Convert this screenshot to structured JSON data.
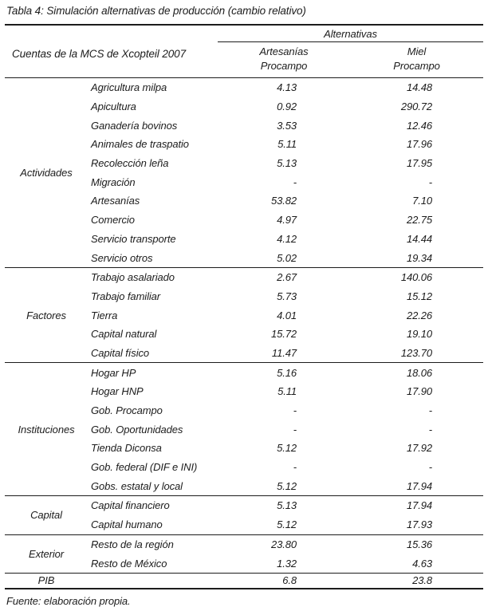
{
  "title": "Tabla 4: Simulación alternativas de producción (cambio relativo)",
  "footer": "Fuente: elaboración propia.",
  "colors": {
    "text": "#1c1c1c",
    "rule": "#1c1c1c",
    "background": "#ffffff"
  },
  "table": {
    "row_header": "Cuentas de la MCS de Xcopteil 2007",
    "col_group": "Alternativas",
    "columns": [
      {
        "line1": "Artesanías",
        "line2": "Procampo"
      },
      {
        "line1": "Miel",
        "line2": "Procampo"
      }
    ],
    "sections": [
      {
        "group": "Actividades",
        "rows": [
          {
            "label": "Agricultura milpa",
            "v1": "4.13",
            "v2": "14.48"
          },
          {
            "label": "Apicultura",
            "v1": "0.92",
            "v2": "290.72"
          },
          {
            "label": "Ganadería bovinos",
            "v1": "3.53",
            "v2": "12.46"
          },
          {
            "label": "Animales de traspatio",
            "v1": "5.11",
            "v2": "17.96"
          },
          {
            "label": "Recolección leña",
            "v1": "5.13",
            "v2": "17.95"
          },
          {
            "label": "Migración",
            "v1": "-",
            "v2": "-"
          },
          {
            "label": "Artesanías",
            "v1": "53.82",
            "v2": "7.10"
          },
          {
            "label": "Comercio",
            "v1": "4.97",
            "v2": "22.75"
          },
          {
            "label": "Servicio transporte",
            "v1": "4.12",
            "v2": "14.44"
          },
          {
            "label": "Servicio otros",
            "v1": "5.02",
            "v2": "19.34"
          }
        ]
      },
      {
        "group": "Factores",
        "rows": [
          {
            "label": "Trabajo asalariado",
            "v1": "2.67",
            "v2": "140.06"
          },
          {
            "label": "Trabajo familiar",
            "v1": "5.73",
            "v2": "15.12"
          },
          {
            "label": "Tierra",
            "v1": "4.01",
            "v2": "22.26"
          },
          {
            "label": "Capital natural",
            "v1": "15.72",
            "v2": "19.10"
          },
          {
            "label": "Capital físico",
            "v1": "11.47",
            "v2": "123.70"
          }
        ]
      },
      {
        "group": "Instituciones",
        "rows": [
          {
            "label": "Hogar HP",
            "v1": "5.16",
            "v2": "18.06"
          },
          {
            "label": "Hogar HNP",
            "v1": "5.11",
            "v2": "17.90"
          },
          {
            "label": "Gob. Procampo",
            "v1": "-",
            "v2": "-"
          },
          {
            "label": "Gob. Oportunidades",
            "v1": "-",
            "v2": "-"
          },
          {
            "label": "Tienda Diconsa",
            "v1": "5.12",
            "v2": "17.92"
          },
          {
            "label": "Gob. federal (DIF e INI)",
            "v1": "-",
            "v2": "-"
          },
          {
            "label": "Gobs. estatal y local",
            "v1": "5.12",
            "v2": "17.94"
          }
        ]
      },
      {
        "group": "Capital",
        "rows": [
          {
            "label": "Capital financiero",
            "v1": "5.13",
            "v2": "17.94"
          },
          {
            "label": "Capital humano",
            "v1": "5.12",
            "v2": "17.93"
          }
        ]
      },
      {
        "group": "Exterior",
        "rows": [
          {
            "label": "Resto de la región",
            "v1": "23.80",
            "v2": "15.36"
          },
          {
            "label": "Resto de México",
            "v1": "1.32",
            "v2": "4.63"
          }
        ]
      }
    ],
    "pib": {
      "label": "PIB",
      "v1": "6.8",
      "v2": "23.8"
    }
  }
}
